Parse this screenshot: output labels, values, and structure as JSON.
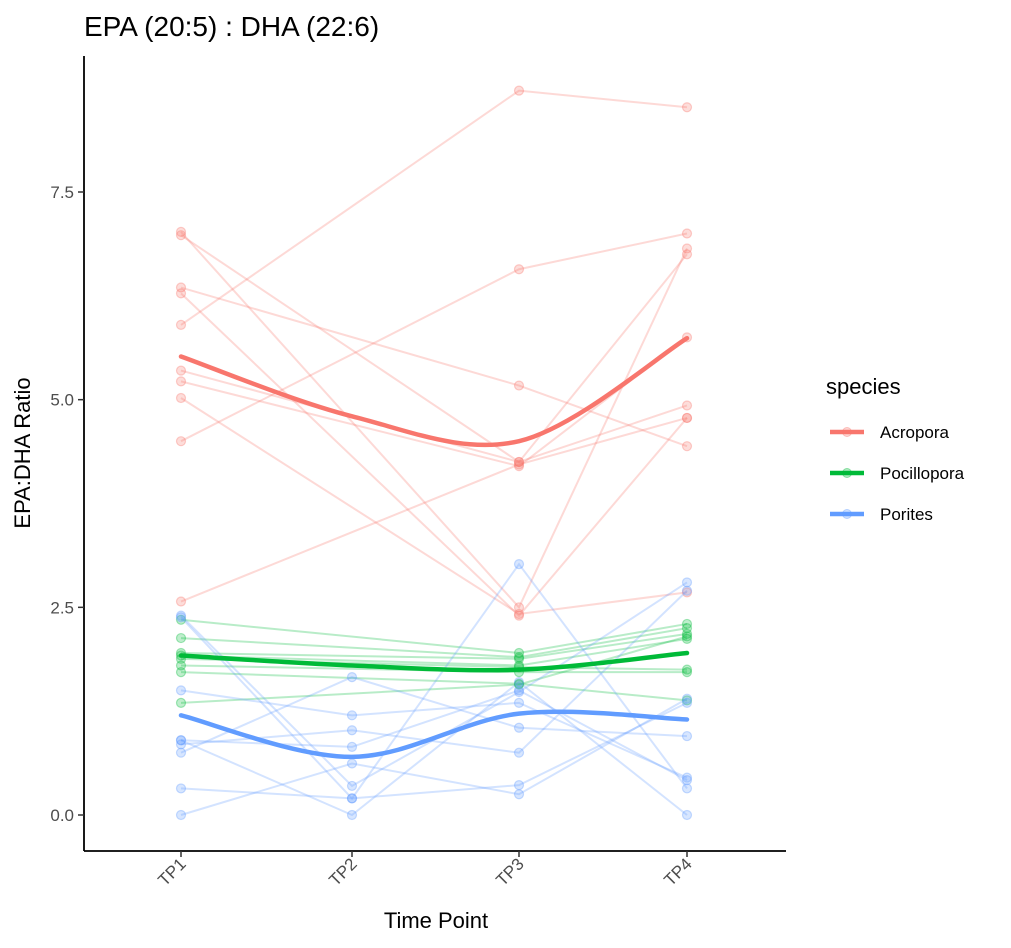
{
  "chart_data": {
    "type": "line",
    "title": "EPA (20:5) : DHA (22:6)",
    "xlabel": "Time Point",
    "ylabel": "EPA:DHA Ratio",
    "categories": [
      "TP1",
      "TP2",
      "TP3",
      "TP4"
    ],
    "ylim": [
      -0.4,
      9.2
    ],
    "yticks": [
      0.0,
      2.5,
      5.0,
      7.5
    ],
    "ytick_labels": [
      "0.0",
      "2.5",
      "5.0",
      "7.5"
    ],
    "grid": false,
    "legend": {
      "title": "species",
      "position": "right"
    },
    "series": [
      {
        "name": "Acropora",
        "color": "#F8766D",
        "smooth": [
          5.52,
          4.8,
          4.5,
          5.74
        ],
        "individuals": [
          [
            7.02,
            null,
            2.5,
            6.82
          ],
          [
            6.98,
            null,
            4.25,
            6.75
          ],
          [
            6.35,
            null,
            5.17,
            4.44
          ],
          [
            6.28,
            null,
            2.4,
            4.78
          ],
          [
            5.9,
            null,
            8.72,
            8.52
          ],
          [
            5.35,
            null,
            4.25,
            4.93
          ],
          [
            5.22,
            null,
            4.2,
            5.75
          ],
          [
            5.02,
            null,
            2.42,
            2.68
          ],
          [
            4.5,
            null,
            6.57,
            7.0
          ],
          [
            2.57,
            null,
            4.22,
            4.78
          ]
        ]
      },
      {
        "name": "Pocillopora",
        "color": "#00BA38",
        "smooth": [
          1.92,
          1.8,
          1.75,
          1.95
        ],
        "individuals": [
          [
            2.35,
            null,
            1.95,
            2.3
          ],
          [
            2.13,
            null,
            1.9,
            2.25
          ],
          [
            1.95,
            null,
            1.88,
            2.18
          ],
          [
            1.92,
            null,
            1.8,
            2.12
          ],
          [
            1.88,
            null,
            1.78,
            1.75
          ],
          [
            1.8,
            null,
            1.72,
            1.72
          ],
          [
            1.72,
            null,
            1.58,
            1.38
          ],
          [
            1.35,
            null,
            1.57,
            2.15
          ]
        ]
      },
      {
        "name": "Porites",
        "color": "#619CFF",
        "smooth": [
          1.2,
          0.7,
          1.22,
          1.15
        ],
        "individuals": [
          [
            2.4,
            0.35,
            1.48,
            2.8
          ],
          [
            2.38,
            0.2,
            3.02,
            0.32
          ],
          [
            1.5,
            1.2,
            1.35,
            0.45
          ],
          [
            0.9,
            0.82,
            1.5,
            0.42
          ],
          [
            0.85,
            1.02,
            0.75,
            2.7
          ],
          [
            0.75,
            1.66,
            1.05,
            0.95
          ],
          [
            0.32,
            0.2,
            0.36,
            1.35
          ],
          [
            0.0,
            0.62,
            0.25,
            1.4
          ],
          [
            0.9,
            0.0,
            1.6,
            0.0
          ]
        ]
      }
    ]
  }
}
